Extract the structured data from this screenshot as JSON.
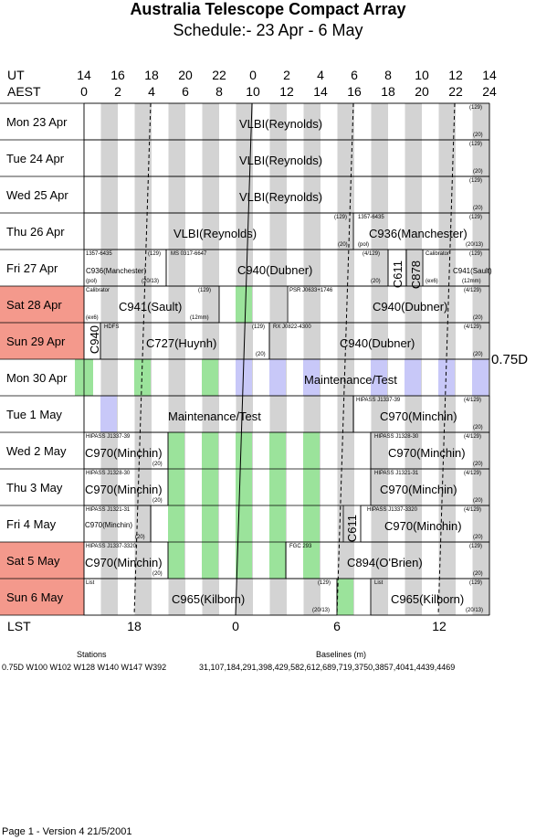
{
  "header": {
    "title": "Australia Telescope Compact Array",
    "subtitle": "Schedule:- 23 Apr - 6  May"
  },
  "axes": {
    "ut_label": "UT",
    "aest_label": "AEST",
    "lst_label": "LST",
    "ut_ticks": [
      "14",
      "16",
      "18",
      "20",
      "22",
      "0",
      "2",
      "4",
      "6",
      "8",
      "10",
      "12",
      "14"
    ],
    "aest_ticks": [
      "0",
      "2",
      "4",
      "6",
      "8",
      "10",
      "12",
      "14",
      "16",
      "18",
      "20",
      "22",
      "24"
    ],
    "lst_ticks": [
      "18",
      "0",
      "6",
      "12"
    ]
  },
  "colors": {
    "weekend": "#f4998c",
    "stripe_grey": "#d3d3d3",
    "stripe_green": "#9be39b",
    "stripe_lilac": "#c8c8f8"
  },
  "days": [
    {
      "label": "Mon   23 Apr",
      "weekend": false
    },
    {
      "label": "Tue   24 Apr",
      "weekend": false
    },
    {
      "label": "Wed  25 Apr",
      "weekend": false
    },
    {
      "label": "Thu   26 Apr",
      "weekend": false
    },
    {
      "label": "Fri    27 Apr",
      "weekend": false
    },
    {
      "label": "Sat    28 Apr",
      "weekend": true
    },
    {
      "label": "Sun   29 Apr",
      "weekend": true
    },
    {
      "label": "Mon   30 Apr",
      "weekend": false
    },
    {
      "label": "Tue    1  May",
      "weekend": false
    },
    {
      "label": "Wed  2  May",
      "weekend": false
    },
    {
      "label": "Thu   3  May",
      "weekend": false
    },
    {
      "label": "Fri    4  May",
      "weekend": false
    },
    {
      "label": "Sat   5  May",
      "weekend": true
    },
    {
      "label": "Sun   6  May",
      "weekend": true
    }
  ],
  "config_label": "0.75D",
  "projects": {
    "r0": {
      "main": "VLBI(Reynolds)",
      "tag": "(129)",
      "end": "(20)"
    },
    "r1": {
      "main": "VLBI(Reynolds)",
      "tag": "(129)",
      "end": "(20)"
    },
    "r2": {
      "main": "VLBI(Reynolds)",
      "tag": "(129)",
      "end": "(20)"
    },
    "r3": {
      "main": "VLBI(Reynolds)",
      "tag1": "(129)",
      "end1": "(20)",
      "src": "1357-6435",
      "main2": "C936(Manchester)",
      "tag2": "(129)",
      "sub2": "(pol)",
      "end2": "(20/13)"
    },
    "r4": {
      "src1": "1357-6435",
      "tag1": "(129)",
      "main1": "C936(Manchester)",
      "sub1": "(pol)",
      "end1": "(20/13)",
      "src2": "MS 0317-6647",
      "main2": "C940(Dubner)",
      "tag2": "(4/129)",
      "end2": "(20)",
      "v1": "C611",
      "v2": "C878",
      "src3": "Calibrator",
      "tag3": "(129)",
      "main3": "C941(Sault)",
      "sub3": "(ex6)",
      "end3": "(12mm)"
    },
    "r5": {
      "src1": "Calibrator",
      "tag1": "(129)",
      "main1": "C941(Sault)",
      "sub1": "(ex6)",
      "end1": "(12mm)",
      "src2": "PSR J0633+1746",
      "main2": "C940(Dubner)",
      "tag2": "(4/129)",
      "end2": "(20)"
    },
    "r6": {
      "v1": "C940",
      "src1": "HDFS",
      "main1": "C727(Huynh)",
      "tag1": "(129)",
      "end1": "(20)",
      "src2": "RX J0822-4300",
      "main2": "C940(Dubner)",
      "tag2": "(4/129)",
      "end2": "(20)"
    },
    "r7": {
      "main": "Maintenance/Test"
    },
    "r8": {
      "main1": "Maintenance/Test",
      "src2": "HIPASS J1337-39",
      "main2": "C970(Minchin)",
      "tag2": "(4/129)",
      "end2": "(20)"
    },
    "r9": {
      "src1": "HIPASS J1337-39",
      "main1": "C970(Minchin)",
      "end1": "(20)",
      "src2": "HIPASS J1328-30",
      "main2": "C970(Minchin)",
      "tag2": "(4/129)",
      "end2": "(20)"
    },
    "r10": {
      "src1": "HIPASS J1328-30",
      "main1": "C970(Minchin)",
      "end1": "(20)",
      "src2": "HIPASS J1321-31",
      "main2": "C970(Minchin)",
      "tag2": "(4/129)",
      "end2": "(20)"
    },
    "r11": {
      "src1": "HIPASS J1321-31",
      "main1": "C970(Minchin)",
      "end1": "(20)",
      "v1": "C611",
      "src2": "HIPASS J1337-3320",
      "main2": "C970(Minchin)",
      "tag2": "(4/129)",
      "end2": "(20)"
    },
    "r12": {
      "src1": "HIPASS J1337-3320",
      "main1": "C970(Minchin)",
      "end1": "(20)",
      "src2": "FGC 293",
      "main2": "C894(O'Brien)",
      "tag2": "(129)",
      "end2": "(20)"
    },
    "r13": {
      "src1": "List",
      "main1": "C965(Kilborn)",
      "tag1": "(129)",
      "end1": "(20/13)",
      "src2": "List",
      "main2": "C965(Kilborn)",
      "tag2": "(129)",
      "end2": "(20/13)"
    }
  },
  "footer": {
    "stations_label": "Stations",
    "stations": "0.75D  W100  W102  W128  W140  W147  W392",
    "baselines_label": "Baselines (m)",
    "baselines": "31,107,184,291,398,429,582,612,689,719,3750,3857,4041,4439,4469",
    "page": "Page 1 - Version 4  21/5/2001"
  }
}
